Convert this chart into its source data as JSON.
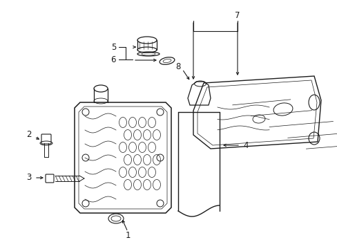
{
  "background_color": "#ffffff",
  "line_color": "#1a1a1a",
  "line_width": 1.0,
  "figsize": [
    4.89,
    3.6
  ],
  "dpi": 100,
  "label_fs": 8.5
}
